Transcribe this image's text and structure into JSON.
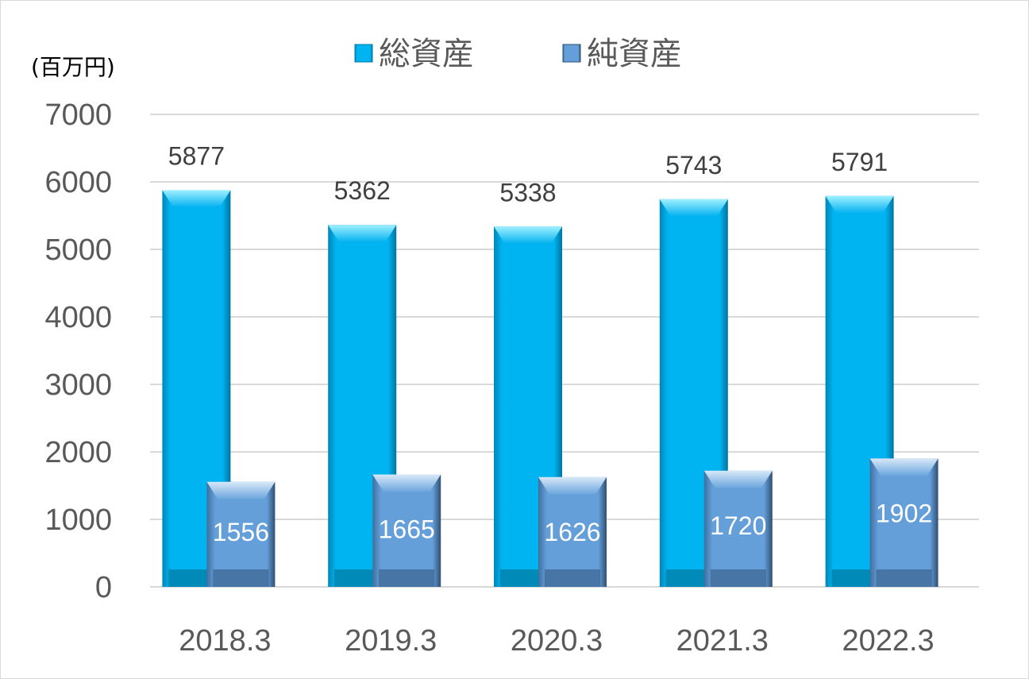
{
  "chart_data": {
    "type": "bar",
    "unit_label": "(百万円)",
    "categories": [
      "2018.3",
      "2019.3",
      "2020.3",
      "2021.3",
      "2022.3"
    ],
    "series": [
      {
        "name": "総資産",
        "values": [
          5877,
          5362,
          5338,
          5743,
          5791
        ],
        "color": "#00b0f0"
      },
      {
        "name": "純資産",
        "values": [
          1556,
          1665,
          1626,
          1720,
          1902
        ],
        "color": "#5b9bd5"
      }
    ],
    "ylim": [
      0,
      7000
    ],
    "yticks": [
      "0",
      "1000",
      "2000",
      "3000",
      "4000",
      "5000",
      "6000",
      "7000"
    ],
    "grid": true,
    "legend_position": "top"
  }
}
